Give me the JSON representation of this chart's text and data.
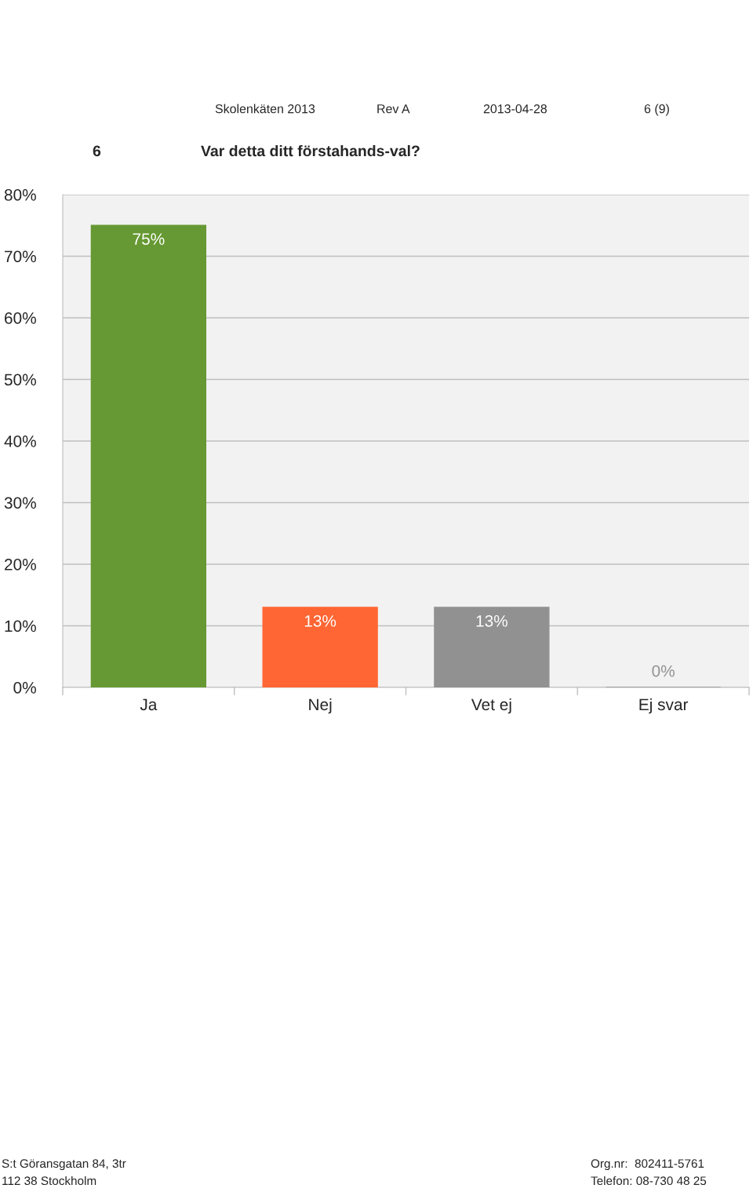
{
  "chart_data": {
    "type": "bar",
    "title": "Var detta ditt förstahands-val?",
    "categories": [
      "Ja",
      "Nej",
      "Vet ej",
      "Ej svar"
    ],
    "values": [
      75,
      13,
      13,
      0
    ],
    "colors": [
      "#669933",
      "#ff6633",
      "#919191",
      "#919191"
    ],
    "ylim": [
      0,
      80
    ],
    "yticks": [
      {
        "value": 0,
        "label": "0%"
      },
      {
        "value": 10,
        "label": "10%"
      },
      {
        "value": 20,
        "label": "20%"
      },
      {
        "value": 30,
        "label": "30%"
      },
      {
        "value": 40,
        "label": "40%"
      },
      {
        "value": 50,
        "label": "50%"
      },
      {
        "value": 60,
        "label": "60%"
      },
      {
        "value": 70,
        "label": "70%"
      },
      {
        "value": 80,
        "label": "80%"
      }
    ],
    "grid": "y",
    "value_labels": [
      "75%",
      "13%",
      "13%",
      "0%"
    ],
    "annotations": [
      "6",
      "Skolenkäten 2013",
      "Rev A",
      "2013-04-28",
      "6 (9)",
      "S:t Göransgatan 84, 3tr",
      "112 38 Stockholm",
      "Org.nr:  802411-5761",
      "Telefon: 08-730 48 25"
    ]
  }
}
